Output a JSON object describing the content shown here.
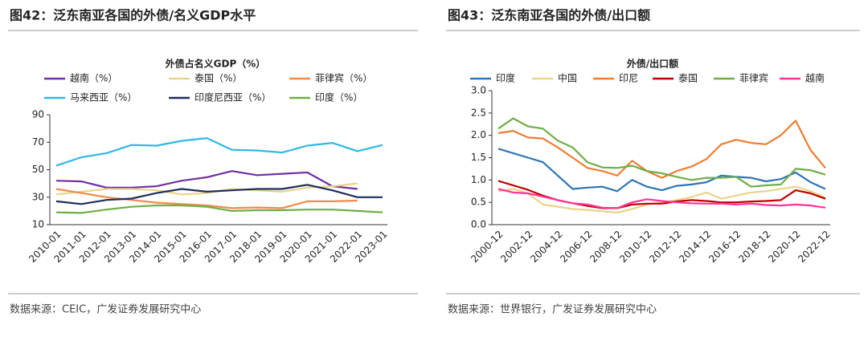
{
  "chart_data": [
    {
      "type": "line",
      "title": "图42：泛东南亚各国的外债/名义GDP水平",
      "subtitle": "外债占名义GDP（%）",
      "source": "数据来源：CEIC，广发证券发展研究中心",
      "categories": [
        "2010-01",
        "2011-01",
        "2012-01",
        "2013-01",
        "2014-01",
        "2015-01",
        "2016-01",
        "2017-01",
        "2018-01",
        "2019-01",
        "2020-01",
        "2021-01",
        "2022-01",
        "2023-01"
      ],
      "series": [
        {
          "name": "越南（%）",
          "color": "#7030a0",
          "values": [
            42,
            41.5,
            37,
            37,
            38,
            42,
            44.5,
            49,
            46,
            47,
            48,
            38,
            36,
            null
          ]
        },
        {
          "name": "泰国（%）",
          "color": "#e8d48a",
          "values": [
            32,
            34,
            36,
            36,
            35,
            32,
            33,
            36,
            35,
            34,
            37,
            38,
            40,
            null
          ]
        },
        {
          "name": "菲律宾（%）",
          "color": "#f08a4b",
          "values": [
            36,
            33,
            30,
            28,
            26,
            25,
            24,
            22,
            22.5,
            22,
            27,
            27,
            27.5,
            null
          ]
        },
        {
          "name": "马来西亚（%）",
          "color": "#2fb8e6",
          "values": [
            53,
            59,
            62,
            68,
            67.5,
            71,
            73,
            64.5,
            64,
            62.5,
            67.5,
            69.5,
            63.5,
            68
          ]
        },
        {
          "name": "印度尼西亚（%）",
          "color": "#1f2d5c",
          "values": [
            27,
            25,
            28,
            29,
            33,
            36,
            34,
            35,
            36,
            36,
            39,
            35,
            30,
            30
          ]
        },
        {
          "name": "印度（%）",
          "color": "#70ad47",
          "values": [
            19,
            18.5,
            21,
            23,
            24,
            24,
            23,
            20,
            20.5,
            20.5,
            21,
            21,
            20,
            19
          ]
        }
      ],
      "ylim": [
        10,
        90
      ],
      "yticks": [
        10,
        30,
        50,
        70,
        90
      ]
    },
    {
      "type": "line",
      "title": "图43：泛东南亚各国的外债/出口额",
      "subtitle": "外债/出口额",
      "source": "数据来源：世界银行，广发证券发展研究中心",
      "categories": [
        "2000-12",
        null,
        "2002-12",
        null,
        "2004-12",
        null,
        "2006-12",
        null,
        "2008-12",
        null,
        "2010-12",
        null,
        "2012-12",
        null,
        "2014-12",
        null,
        "2016-12",
        null,
        "2018-12",
        null,
        "2020-12",
        null,
        "2022-12"
      ],
      "series": [
        {
          "name": "印度",
          "color": "#2e75b6",
          "values": [
            1.7,
            1.6,
            1.5,
            1.4,
            1.1,
            0.8,
            0.83,
            0.85,
            0.75,
            1.0,
            0.85,
            0.77,
            0.87,
            0.9,
            0.95,
            1.1,
            1.07,
            1.05,
            0.97,
            1.02,
            1.17,
            0.95,
            0.8
          ]
        },
        {
          "name": "中国",
          "color": "#e8d48a",
          "values": [
            0.75,
            0.8,
            0.7,
            0.45,
            0.4,
            0.35,
            0.33,
            0.3,
            0.27,
            0.35,
            0.45,
            0.5,
            0.55,
            0.62,
            0.72,
            0.58,
            0.65,
            0.72,
            0.75,
            0.8,
            0.85,
            0.75,
            0.6
          ]
        },
        {
          "name": "印尼",
          "color": "#ed7d31",
          "values": [
            2.05,
            2.1,
            1.95,
            1.93,
            1.73,
            1.5,
            1.27,
            1.2,
            1.1,
            1.43,
            1.2,
            1.05,
            1.2,
            1.3,
            1.47,
            1.8,
            1.9,
            1.83,
            1.8,
            2.0,
            2.33,
            1.67,
            1.27
          ]
        },
        {
          "name": "泰国",
          "color": "#c00000",
          "values": [
            0.98,
            0.88,
            0.78,
            0.65,
            0.55,
            0.48,
            0.42,
            0.37,
            0.37,
            0.45,
            0.47,
            0.47,
            0.52,
            0.55,
            0.53,
            0.5,
            0.5,
            0.52,
            0.53,
            0.55,
            0.77,
            0.7,
            0.58
          ]
        },
        {
          "name": "菲律宾",
          "color": "#70ad47",
          "values": [
            2.15,
            2.38,
            2.2,
            2.15,
            1.88,
            1.73,
            1.4,
            1.28,
            1.27,
            1.32,
            1.2,
            1.15,
            1.07,
            1.0,
            1.05,
            1.05,
            1.07,
            0.85,
            0.88,
            0.9,
            1.25,
            1.22,
            1.12
          ]
        },
        {
          "name": "越南",
          "color": "#ff3399",
          "values": [
            0.8,
            0.72,
            0.7,
            0.63,
            0.55,
            0.48,
            0.45,
            0.38,
            0.37,
            0.5,
            0.57,
            0.53,
            0.5,
            0.48,
            0.47,
            0.47,
            0.45,
            0.47,
            0.44,
            0.43,
            0.45,
            0.43,
            0.38
          ]
        }
      ],
      "ylim": [
        0,
        3
      ],
      "yticks": [
        {
          "value": 0,
          "label": "0.0"
        },
        0.5,
        {
          "value": 1,
          "label": "1.0"
        },
        1.5,
        {
          "value": 2,
          "label": "2.0"
        },
        2.5,
        {
          "value": 3,
          "label": "3.0"
        }
      ]
    }
  ]
}
